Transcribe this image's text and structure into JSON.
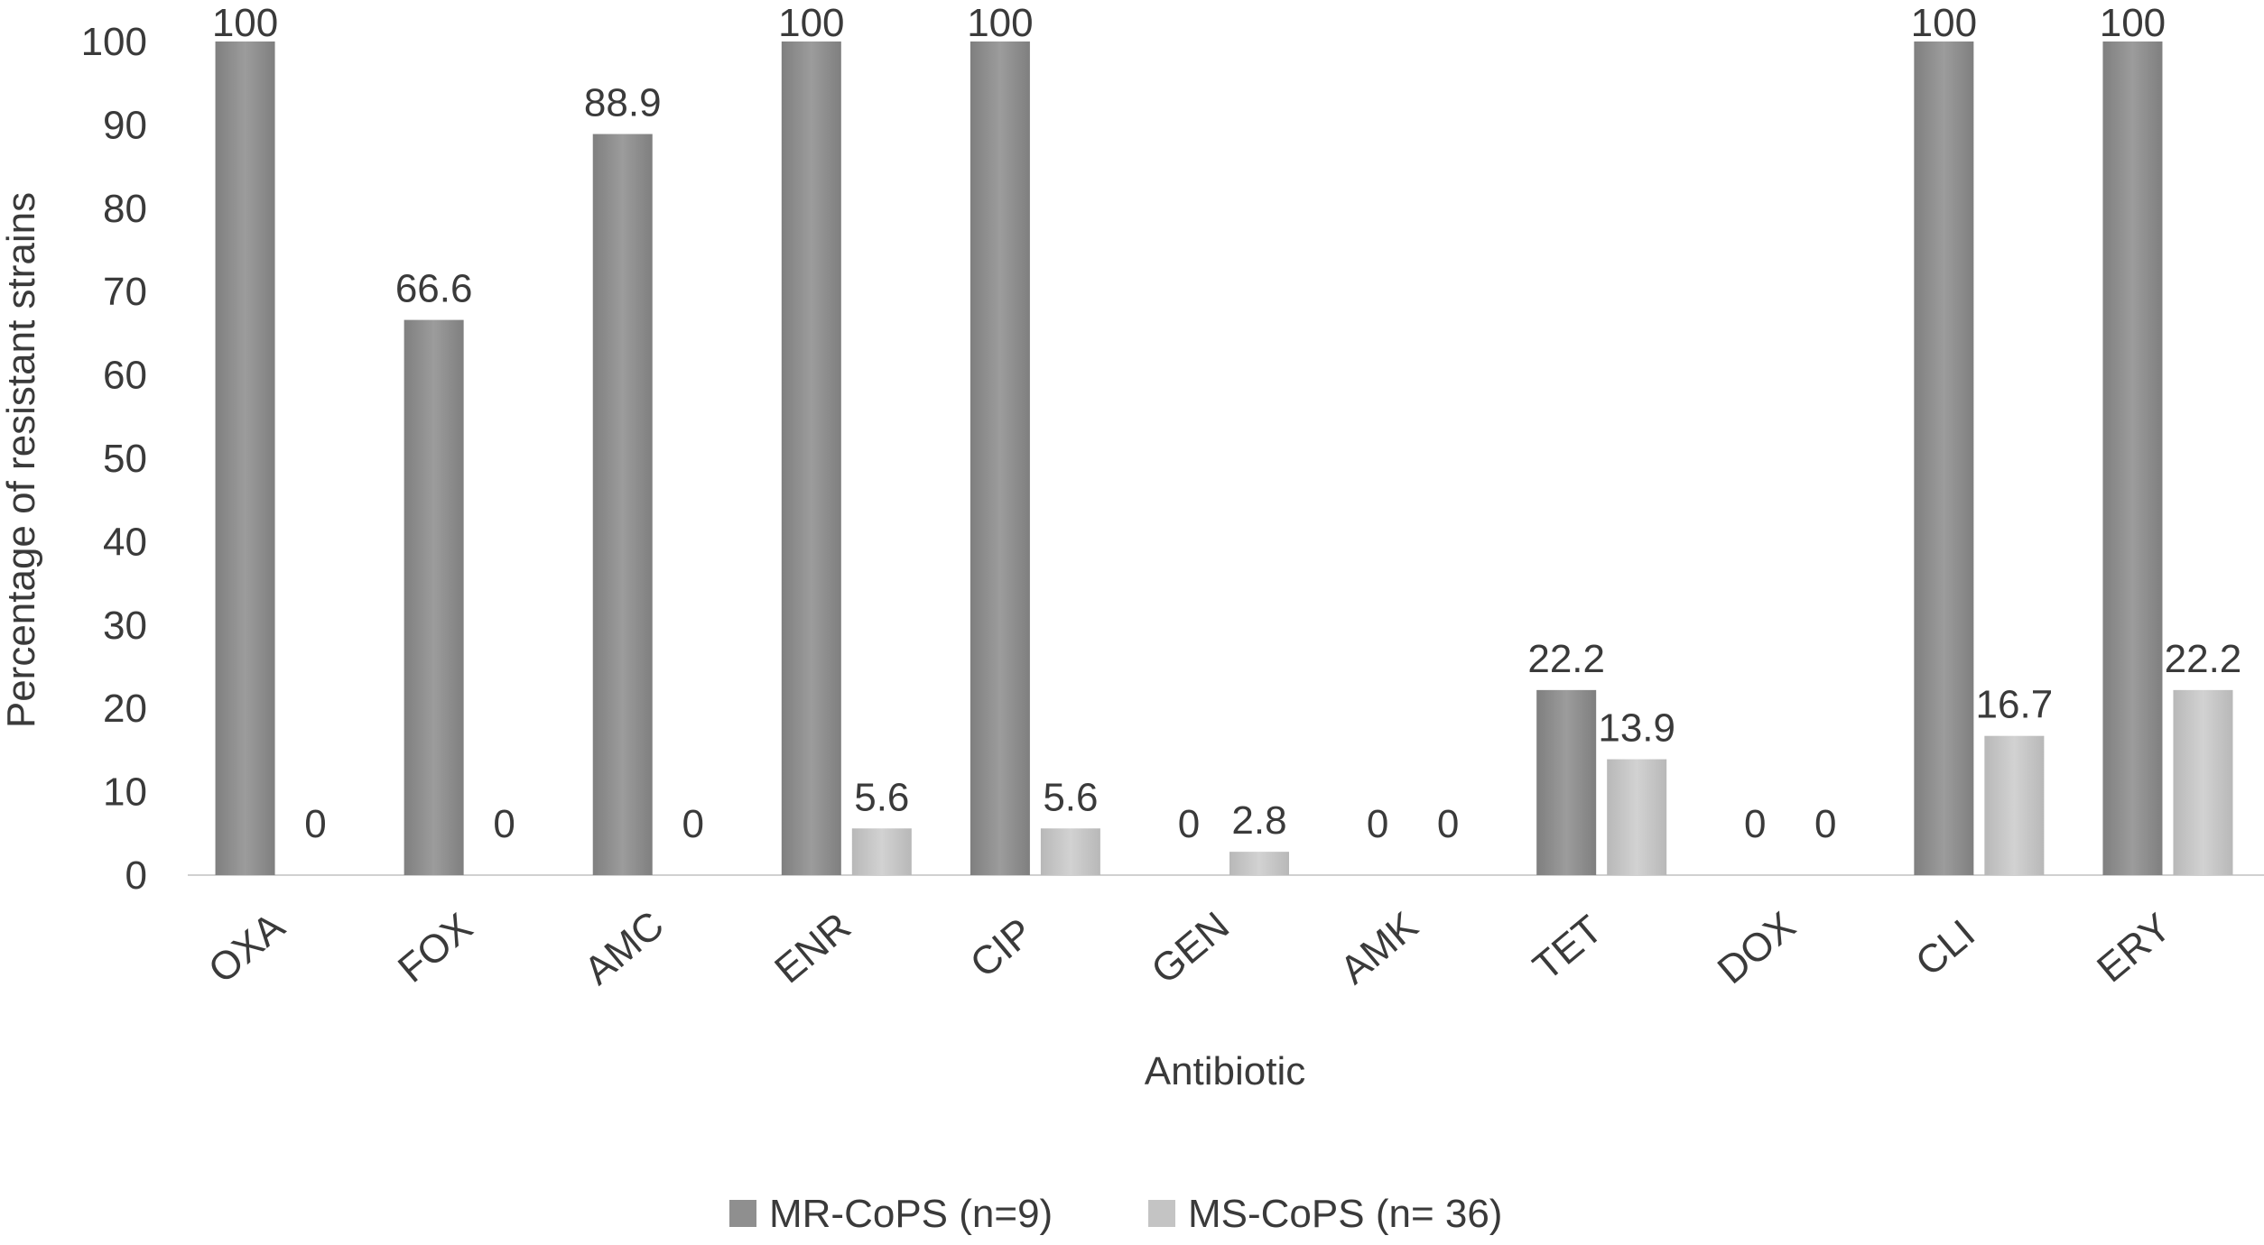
{
  "chart_data": {
    "type": "bar",
    "title": "",
    "xlabel": "Antibiotic",
    "ylabel": "Percentage of resistant strains",
    "ylim": [
      0,
      100
    ],
    "yticks": [
      0,
      10,
      20,
      30,
      40,
      50,
      60,
      70,
      80,
      90,
      100
    ],
    "grid": false,
    "legend_position": "bottom",
    "categories": [
      "OXA",
      "FOX",
      "AMC",
      "ENR",
      "CIP",
      "GEN",
      "AMK",
      "TET",
      "DOX",
      "CLI",
      "ERY"
    ],
    "series": [
      {
        "name": "MR-CoPS (n=9)",
        "color": "#8f8f8f",
        "values": [
          100,
          66.6,
          88.9,
          100,
          100,
          0,
          0,
          22.2,
          0,
          100,
          100
        ],
        "labels": [
          "100",
          "66.6",
          "88.9",
          "100",
          "100",
          "0",
          "0",
          "22.2",
          "0",
          "100",
          "100"
        ]
      },
      {
        "name": "MS-CoPS (n= 36)",
        "color": "#c4c4c4",
        "values": [
          0,
          0,
          0,
          5.6,
          5.6,
          2.8,
          0,
          13.9,
          0,
          16.7,
          22.2
        ],
        "labels": [
          "0",
          "0",
          "0",
          "5.6",
          "5.6",
          "2.8",
          "0",
          "13.9",
          "0",
          "16.7",
          "22.2"
        ]
      }
    ]
  }
}
